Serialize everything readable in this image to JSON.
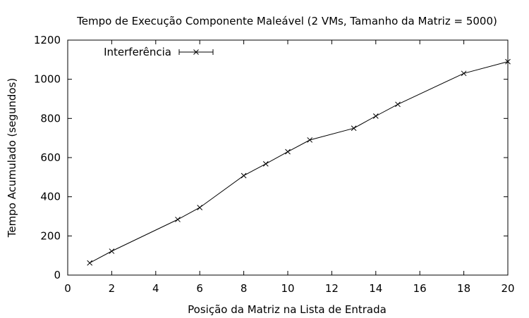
{
  "chart_data": {
    "type": "line",
    "title": "Tempo de Execução Componente Maleável (2 VMs, Tamanho da Matriz = 5000)",
    "xlabel": "Posição da Matriz na Lista de Entrada",
    "ylabel": "Tempo Acumulado (segundos)",
    "xlim": [
      0,
      20
    ],
    "ylim": [
      0,
      1200
    ],
    "xticks": [
      0,
      2,
      4,
      6,
      8,
      10,
      12,
      14,
      16,
      18,
      20
    ],
    "yticks": [
      0,
      200,
      400,
      600,
      800,
      1000,
      1200
    ],
    "grid": false,
    "legend_position": "top-left",
    "series": [
      {
        "name": "Interferência",
        "marker": "x",
        "error_bars": true,
        "x": [
          1,
          2,
          5,
          6,
          8,
          9,
          10,
          11,
          13,
          14,
          15,
          18,
          20
        ],
        "y": [
          62,
          122,
          284,
          345,
          508,
          568,
          630,
          690,
          750,
          812,
          872,
          1030,
          1090
        ]
      }
    ]
  }
}
